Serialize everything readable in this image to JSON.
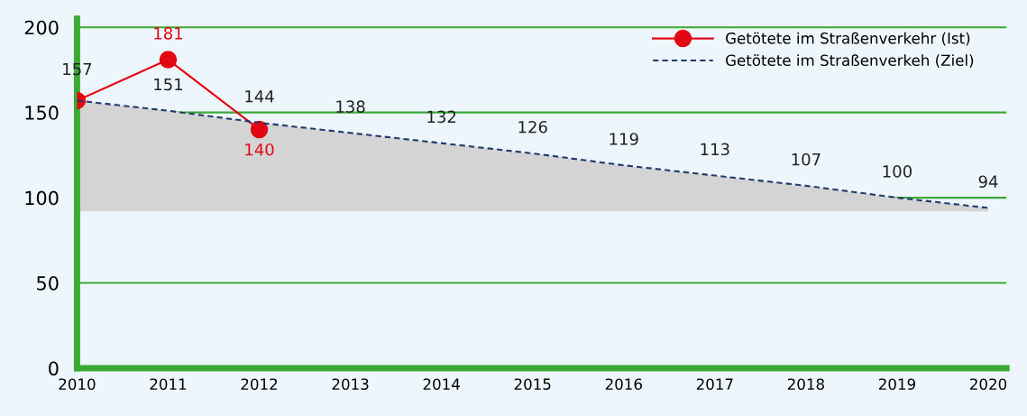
{
  "chart_data": {
    "type": "line",
    "x": [
      2010,
      2011,
      2012,
      2013,
      2014,
      2015,
      2016,
      2017,
      2018,
      2019,
      2020
    ],
    "series": [
      {
        "name": "Getötete im Straßenverkehr (Ist)",
        "color": "#e30613",
        "marker": "circle",
        "line_style": "solid",
        "values": [
          157,
          181,
          140,
          null,
          null,
          null,
          null,
          null,
          null,
          null,
          null
        ],
        "value_labels": [
          null,
          "181",
          "140",
          null,
          null,
          null,
          null,
          null,
          null,
          null,
          null
        ]
      },
      {
        "name": "Getötete im Straßenverkeh (Ziel)",
        "color": "#1f3a6e",
        "marker": "none",
        "line_style": "dashed",
        "values": [
          157,
          151,
          144,
          138,
          132,
          126,
          119,
          113,
          107,
          100,
          94
        ],
        "value_labels": [
          "157",
          "151",
          "144",
          "138",
          "132",
          "126",
          "119",
          "113",
          "107",
          "100",
          "94"
        ],
        "lower": [
          92,
          92,
          92,
          92,
          92,
          92,
          92,
          92,
          92,
          92,
          92
        ],
        "upper": [
          157,
          151,
          144,
          138,
          132,
          126,
          119,
          113,
          107,
          100,
          94
        ]
      }
    ],
    "xlim": [
      2010,
      2020.2
    ],
    "xticks": [
      2010,
      2011,
      2012,
      2013,
      2014,
      2015,
      2016,
      2017,
      2018,
      2019,
      2020
    ],
    "ylim": [
      0,
      205
    ],
    "yticks": [
      0,
      50,
      100,
      150,
      200
    ],
    "grid": "y",
    "legend": "top right"
  }
}
